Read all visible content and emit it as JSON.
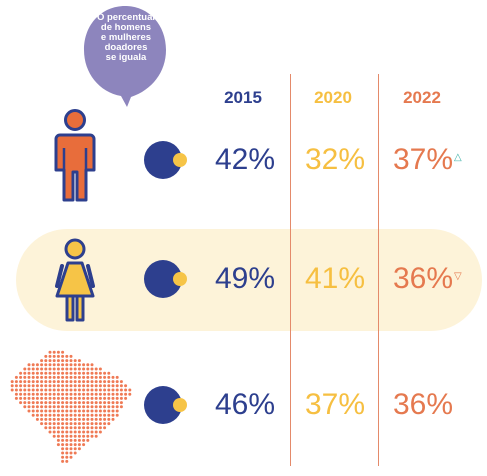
{
  "bubble": {
    "text_lines": [
      "O percentual",
      "de homens",
      "e mulheres",
      "doadores",
      "se iguala"
    ]
  },
  "colors": {
    "y2015": "#2d3f8e",
    "y2020": "#f6bf41",
    "y2022": "#e5794f",
    "man": "#e86d3b",
    "woman": "#f6c447",
    "outline": "#2d3f8e",
    "bubble": "#8d85bd",
    "highlight": "#fdf3d9",
    "map": "#ef7a55",
    "gridline": "#e48a6a"
  },
  "chart_data": {
    "type": "table",
    "columns": [
      "2015",
      "2020",
      "2022"
    ],
    "rows": [
      {
        "icon": "man-icon",
        "values": [
          42,
          32,
          37
        ],
        "labels": [
          "42%",
          "32%",
          "37%"
        ],
        "trend": "up"
      },
      {
        "icon": "woman-icon",
        "values": [
          49,
          41,
          36
        ],
        "labels": [
          "49%",
          "41%",
          "36%"
        ],
        "trend": "down"
      },
      {
        "icon": "brazil-map-icon",
        "values": [
          46,
          37,
          36
        ],
        "labels": [
          "46%",
          "37%",
          "36%"
        ],
        "trend": ""
      }
    ],
    "trend_symbols": {
      "up": "△",
      "down": "▽"
    }
  }
}
